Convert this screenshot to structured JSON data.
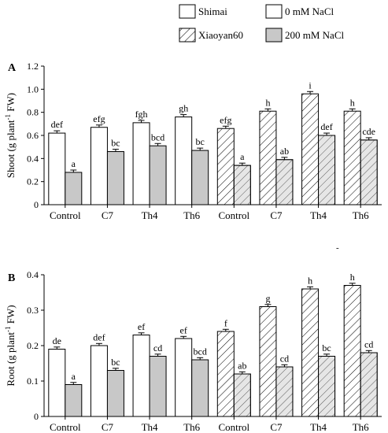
{
  "legend": {
    "entries": [
      {
        "label": "Shimai",
        "pattern": "plain"
      },
      {
        "label": "0 mM NaCl",
        "pattern": "white"
      },
      {
        "label": "Xiaoyan60",
        "pattern": "hatch"
      },
      {
        "label": "200 mM NaCl",
        "pattern": "gray"
      }
    ]
  },
  "colors": {
    "gray_fill": "#c8c8c8",
    "white_fill": "#ffffff",
    "stroke": "#000000"
  },
  "chart_data": [
    {
      "type": "bar",
      "panel_label": "A",
      "ylabel_main": "Shoot (g plant",
      "ylabel_sup": "-1",
      "ylabel_tail": " FW)",
      "ylim": [
        0,
        1.2
      ],
      "yticks": [
        "0",
        "0.2",
        "0.4",
        "0.6",
        "0.8",
        "1.0",
        "1.2"
      ],
      "categories": [
        "Control",
        "C7",
        "Th4",
        "Th6",
        "Control",
        "C7",
        "Th4",
        "Th6"
      ],
      "cultivar_pattern": [
        "plain",
        "plain",
        "plain",
        "plain",
        "hatch",
        "hatch",
        "hatch",
        "hatch"
      ],
      "series": [
        {
          "name": "0 mM NaCl",
          "values": [
            0.62,
            0.67,
            0.71,
            0.76,
            0.66,
            0.81,
            0.96,
            0.81
          ],
          "errors": [
            0.02,
            0.02,
            0.02,
            0.02,
            0.02,
            0.02,
            0.02,
            0.02
          ],
          "labels": [
            "def",
            "efg",
            "fgh",
            "gh",
            "efg",
            "h",
            "i",
            "h"
          ]
        },
        {
          "name": "200 mM NaCl",
          "values": [
            0.28,
            0.46,
            0.51,
            0.47,
            0.34,
            0.39,
            0.6,
            0.56
          ],
          "errors": [
            0.02,
            0.02,
            0.02,
            0.02,
            0.02,
            0.02,
            0.02,
            0.02
          ],
          "labels": [
            "a",
            "bc",
            "bcd",
            "bc",
            "a",
            "ab",
            "def",
            "cde"
          ]
        }
      ],
      "minor_mark": "-"
    },
    {
      "type": "bar",
      "panel_label": "B",
      "ylabel_main": "Root (g plant",
      "ylabel_sup": "-1",
      "ylabel_tail": " FW)",
      "ylim": [
        0,
        0.4
      ],
      "yticks": [
        "0",
        "0.1",
        "0.2",
        "0.3",
        "0.4"
      ],
      "categories": [
        "Control",
        "C7",
        "Th4",
        "Th6",
        "Control",
        "C7",
        "Th4",
        "Th6"
      ],
      "cultivar_pattern": [
        "plain",
        "plain",
        "plain",
        "plain",
        "hatch",
        "hatch",
        "hatch",
        "hatch"
      ],
      "series": [
        {
          "name": "0 mM NaCl",
          "values": [
            0.19,
            0.2,
            0.23,
            0.22,
            0.24,
            0.31,
            0.36,
            0.37
          ],
          "errors": [
            0.006,
            0.006,
            0.006,
            0.006,
            0.006,
            0.006,
            0.006,
            0.006
          ],
          "labels": [
            "de",
            "def",
            "ef",
            "ef",
            "f",
            "g",
            "h",
            "h"
          ]
        },
        {
          "name": "200 mM NaCl",
          "values": [
            0.09,
            0.13,
            0.17,
            0.16,
            0.12,
            0.14,
            0.17,
            0.18
          ],
          "errors": [
            0.006,
            0.006,
            0.006,
            0.006,
            0.006,
            0.006,
            0.006,
            0.006
          ],
          "labels": [
            "a",
            "bc",
            "cd",
            "bcd",
            "ab",
            "cd",
            "bc",
            "cd"
          ]
        }
      ]
    }
  ]
}
